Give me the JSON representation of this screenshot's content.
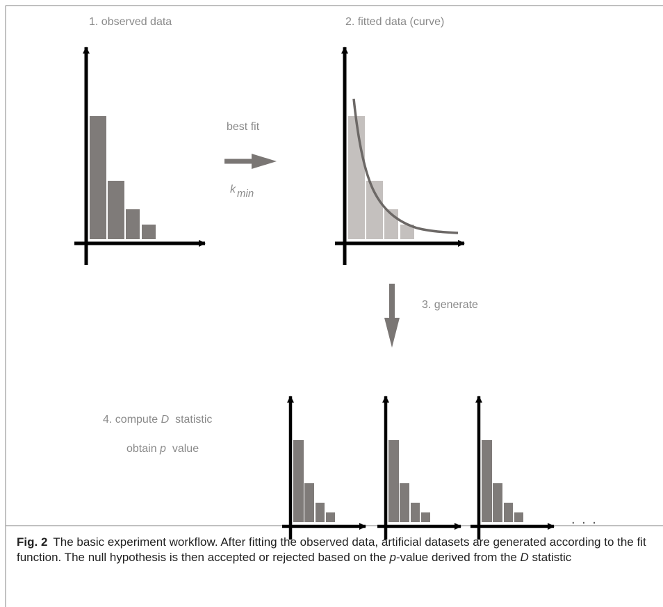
{
  "diagram": {
    "step1_label": "1. observed data",
    "step2_label": "2. fitted data (curve)",
    "step3_label": "3. generate",
    "step4_line1_pre": "4. compute ",
    "step4_line1_var": "D",
    "step4_line1_post": "  statistic",
    "step4_line2_pre": "obtain ",
    "step4_line2_var": "p",
    "step4_line2_post": "  value",
    "arrow_label_top": "best fit",
    "arrow_label_k": "k",
    "arrow_label_sub": "min",
    "ellipsis": ". . ."
  },
  "caption": {
    "fig_label": "Fig. 2",
    "text_1": "The basic experiment workflow. After fitting the observed data, artificial datasets are generated according to the fit function. The null hypothesis is then accepted or rejected based on the ",
    "p_var": "p",
    "text_2": "-value derived from the ",
    "d_var": "D",
    "text_3": " statistic"
  },
  "colors": {
    "bar_dark": "#7f7b79",
    "bar_light": "#c4c0be",
    "curve": "#6c6866",
    "arrow_gray": "#7a7674",
    "axis": "#000000",
    "label": "#8a8a8a",
    "frame": "#9a9a9a"
  }
}
